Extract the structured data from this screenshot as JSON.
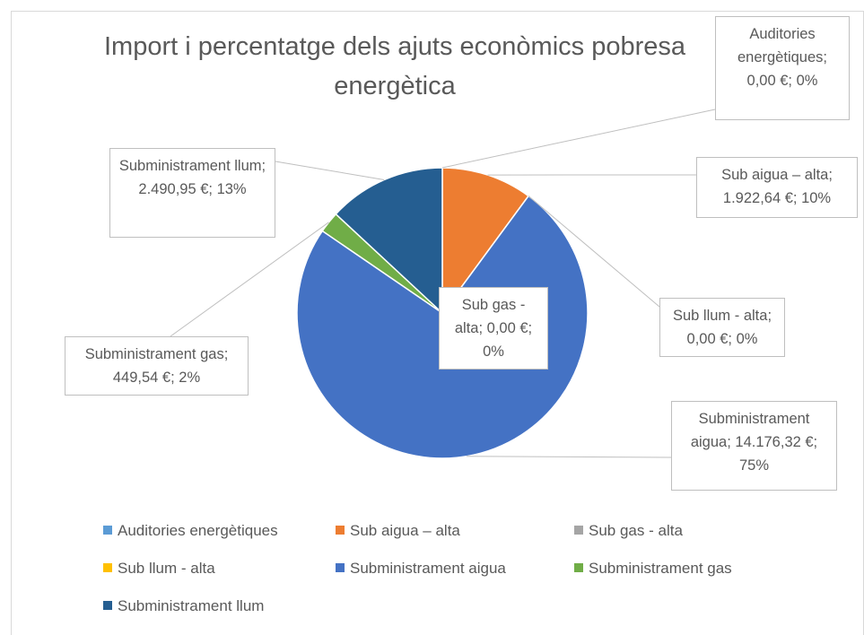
{
  "chart_data": {
    "type": "pie",
    "title": "Import i percentatge dels ajuts econòmics pobresa energètica",
    "categories": [
      "Auditories energètiques",
      "Sub aigua – alta",
      "Sub gas - alta",
      "Sub llum - alta",
      "Subministrament aigua",
      "Subministrament gas",
      "Subministrament llum"
    ],
    "values": [
      0,
      1922.64,
      0,
      0,
      14176.32,
      449.54,
      2490.95
    ],
    "value_labels": [
      "0,00 €; 0%",
      "1.922,64 €; 10%",
      "0,00 €; 0%",
      "0,00 €; 0%",
      "14.176,32 €; 75%",
      "449,54 €; 2%",
      "2.490,95 €; 13%"
    ],
    "colors": [
      "#5b9bd5",
      "#ed7d31",
      "#a5a5a5",
      "#ffc000",
      "#4472c4",
      "#70ad47",
      "#255e91"
    ],
    "legend": "bottom"
  }
}
